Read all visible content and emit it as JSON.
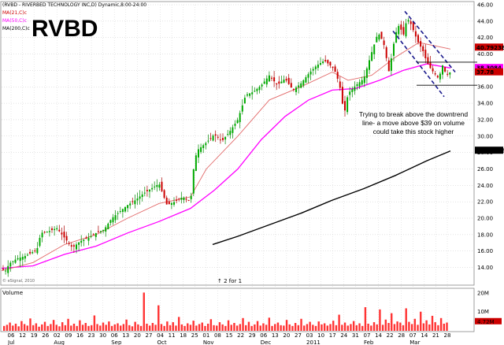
{
  "header": {
    "title_line": "(RVBD - RIVERBED TECHNOLOGY INC,D) Dynamic,8:00-24:00",
    "legend": [
      {
        "label": "MA(21,C)c",
        "color": "#cc0000"
      },
      {
        "label": "MA(50,C)c",
        "color": "#ff00ff"
      },
      {
        "label": "MA(200,C)c",
        "color": "#000000"
      }
    ],
    "ticker": "RVBD"
  },
  "annotation": {
    "lines": [
      "Trying to break above the downtrend",
      "line- a move above $39 on volume",
      "could take this stock higher"
    ]
  },
  "split_note": "↑ 2 for 1",
  "watermark": "© eSignal, 2010",
  "volume_label": "Volume",
  "price_badges": [
    {
      "value": "40.79238",
      "color": "#cc0000"
    },
    {
      "value": "38.3084",
      "color": "#ff00ff"
    },
    {
      "value": "37.78",
      "color": "#cc0000"
    },
    {
      "value": "28.23458",
      "color": "#000000"
    }
  ],
  "volume_axis": [
    "20M",
    "10M",
    "4.72M"
  ],
  "chart_data": {
    "type": "candlestick",
    "ylim": [
      13,
      46
    ],
    "y_ticks": [
      14,
      16,
      18,
      20,
      22,
      24,
      26,
      28,
      30,
      32,
      34,
      36,
      38,
      40,
      42,
      44,
      46
    ],
    "y_tick_labels": [
      "14.00",
      "16.00",
      "18.00",
      "20.00",
      "22.00",
      "24.00",
      "26.00",
      "28.00",
      "30.00",
      "32.00",
      "34.00",
      "36.00",
      "38.00",
      "40.00",
      "42.00",
      "44.00",
      "46.00"
    ],
    "x_day_labels": [
      "06",
      "12",
      "19",
      "26",
      "02",
      "09",
      "16",
      "23",
      "30",
      "06",
      "13",
      "20",
      "27",
      "04",
      "11",
      "18",
      "25",
      "01",
      "08",
      "15",
      "22",
      "29",
      "06",
      "13",
      "20",
      "27",
      "03",
      "10",
      "17",
      "24",
      "31",
      "07",
      "14",
      "22",
      "28",
      "07",
      "14",
      "21",
      "28"
    ],
    "x_month_labels": [
      {
        "label": "Jul",
        "index": 0
      },
      {
        "label": "Aug",
        "index": 4
      },
      {
        "label": "Sep",
        "index": 9
      },
      {
        "label": "Oct",
        "index": 13
      },
      {
        "label": "Nov",
        "index": 17
      },
      {
        "label": "Dec",
        "index": 22
      },
      {
        "label": "2011",
        "index": 26
      },
      {
        "label": "Feb",
        "index": 31
      },
      {
        "label": "Mar",
        "index": 35
      }
    ],
    "price_path": [
      [
        0,
        13.8
      ],
      [
        5,
        13.6
      ],
      [
        10,
        14.5
      ],
      [
        20,
        15.1
      ],
      [
        30,
        15.4
      ],
      [
        38,
        15.8
      ],
      [
        45,
        16.2
      ],
      [
        50,
        18.2
      ],
      [
        60,
        18.4
      ],
      [
        70,
        18.8
      ],
      [
        80,
        17.6
      ],
      [
        90,
        16.4
      ],
      [
        100,
        17.2
      ],
      [
        110,
        17.6
      ],
      [
        120,
        18.2
      ],
      [
        130,
        18.6
      ],
      [
        140,
        20.0
      ],
      [
        150,
        20.8
      ],
      [
        160,
        21.6
      ],
      [
        170,
        22.2
      ],
      [
        180,
        23.0
      ],
      [
        190,
        23.6
      ],
      [
        200,
        24.2
      ],
      [
        210,
        21.6
      ],
      [
        220,
        22.0
      ],
      [
        230,
        22.6
      ],
      [
        240,
        22.0
      ],
      [
        245,
        27.2
      ],
      [
        250,
        28.4
      ],
      [
        260,
        29.2
      ],
      [
        270,
        30.2
      ],
      [
        280,
        29.4
      ],
      [
        290,
        30.6
      ],
      [
        300,
        32.0
      ],
      [
        310,
        35.0
      ],
      [
        320,
        35.4
      ],
      [
        330,
        36.2
      ],
      [
        340,
        37.4
      ],
      [
        350,
        36.2
      ],
      [
        360,
        37.0
      ],
      [
        370,
        35.6
      ],
      [
        380,
        36.4
      ],
      [
        390,
        37.6
      ],
      [
        400,
        38.6
      ],
      [
        410,
        39.2
      ],
      [
        420,
        38.4
      ],
      [
        425,
        37.6
      ],
      [
        430,
        35.8
      ],
      [
        435,
        32.6
      ],
      [
        440,
        35.2
      ],
      [
        450,
        36.2
      ],
      [
        460,
        37.0
      ],
      [
        470,
        40.2
      ],
      [
        478,
        42.6
      ],
      [
        485,
        41.4
      ],
      [
        492,
        37.8
      ],
      [
        500,
        42.4
      ],
      [
        505,
        43.6
      ],
      [
        510,
        42.2
      ],
      [
        515,
        44.4
      ],
      [
        520,
        43.6
      ],
      [
        528,
        41.6
      ],
      [
        535,
        40.4
      ],
      [
        540,
        39.0
      ],
      [
        545,
        38.2
      ],
      [
        550,
        37.6
      ],
      [
        555,
        37.0
      ],
      [
        560,
        38.6
      ],
      [
        565,
        37.4
      ],
      [
        570,
        37.8
      ]
    ],
    "ma21": [
      [
        0,
        13.6
      ],
      [
        40,
        14.6
      ],
      [
        80,
        16.8
      ],
      [
        120,
        18.0
      ],
      [
        160,
        20.0
      ],
      [
        200,
        21.8
      ],
      [
        240,
        22.6
      ],
      [
        260,
        26.0
      ],
      [
        300,
        30.0
      ],
      [
        340,
        34.4
      ],
      [
        380,
        36.0
      ],
      [
        420,
        37.8
      ],
      [
        440,
        36.8
      ],
      [
        470,
        37.4
      ],
      [
        500,
        39.6
      ],
      [
        530,
        41.4
      ],
      [
        560,
        40.8
      ],
      [
        570,
        40.6
      ]
    ],
    "ma50": [
      [
        0,
        13.9
      ],
      [
        40,
        14.2
      ],
      [
        80,
        15.6
      ],
      [
        120,
        16.6
      ],
      [
        160,
        18.2
      ],
      [
        200,
        19.6
      ],
      [
        240,
        21.2
      ],
      [
        270,
        23.4
      ],
      [
        300,
        26.0
      ],
      [
        330,
        29.6
      ],
      [
        360,
        32.4
      ],
      [
        390,
        34.4
      ],
      [
        420,
        35.6
      ],
      [
        450,
        35.8
      ],
      [
        480,
        36.8
      ],
      [
        510,
        38.0
      ],
      [
        540,
        38.8
      ],
      [
        570,
        38.3
      ]
    ],
    "ma200": [
      [
        268,
        16.8
      ],
      [
        300,
        17.8
      ],
      [
        340,
        19.2
      ],
      [
        380,
        20.6
      ],
      [
        420,
        22.2
      ],
      [
        460,
        23.6
      ],
      [
        500,
        25.2
      ],
      [
        540,
        27.0
      ],
      [
        570,
        28.2
      ]
    ],
    "downtrend_upper": [
      [
        512,
        45.2
      ],
      [
        576,
        37.8
      ]
    ],
    "downtrend_lower": [
      [
        497,
        42.8
      ],
      [
        562,
        34.8
      ]
    ],
    "resistance_line": [
      [
        527,
        39.0
      ],
      [
        604,
        39.0
      ]
    ],
    "support_line": [
      [
        527,
        36.2
      ],
      [
        604,
        36.2
      ]
    ],
    "volume_scale_max": 21,
    "volume": [
      2.6,
      3.2,
      4.4,
      2.8,
      3.8,
      2.4,
      5.2,
      3.6,
      2.8,
      6.6,
      3.0,
      4.0,
      2.2,
      3.4,
      4.8,
      2.6,
      3.6,
      5.8,
      3.2,
      2.4,
      4.6,
      3.0,
      6.4,
      2.8,
      3.8,
      2.6,
      5.6,
      3.2,
      4.2,
      2.6,
      3.0,
      8.2,
      3.6,
      2.8,
      4.4,
      3.2,
      5.0,
      2.6,
      3.4,
      4.0,
      2.8,
      3.6,
      6.0,
      3.0,
      2.4,
      4.8,
      3.4,
      2.6,
      20.4,
      3.8,
      2.8,
      4.2,
      3.2,
      13.6,
      3.6,
      2.6,
      5.0,
      3.0,
      4.6,
      2.8,
      7.4,
      3.4,
      2.6,
      4.0,
      3.2,
      5.4,
      2.8,
      3.6,
      4.4,
      2.6,
      3.8,
      6.2,
      3.0,
      2.8,
      4.6,
      3.4,
      2.6,
      5.6,
      3.2,
      4.2,
      2.8,
      3.6,
      6.8,
      3.0,
      4.8,
      2.6,
      3.4,
      5.2,
      2.8,
      4.0,
      3.2,
      7.0,
      2.6,
      3.6,
      4.4,
      3.0,
      2.8,
      5.8,
      3.4,
      2.6,
      4.2,
      3.0,
      6.4,
      2.8,
      3.6,
      4.8,
      3.2,
      2.6,
      5.0,
      3.4,
      4.0,
      2.8,
      3.6,
      5.4,
      3.0,
      8.6,
      3.2,
      4.4,
      2.8,
      3.6,
      5.2,
      3.0,
      4.0,
      2.6,
      12.6,
      3.8,
      2.8,
      4.6,
      3.4,
      11.4,
      3.2,
      6.0,
      4.2,
      9.4,
      3.6,
      5.0,
      4.4,
      3.0,
      12.0,
      4.8,
      3.6,
      6.4,
      3.2,
      10.2,
      4.0,
      5.6,
      3.4,
      8.0,
      4.6,
      3.0,
      6.8,
      3.8,
      4.4
    ]
  }
}
